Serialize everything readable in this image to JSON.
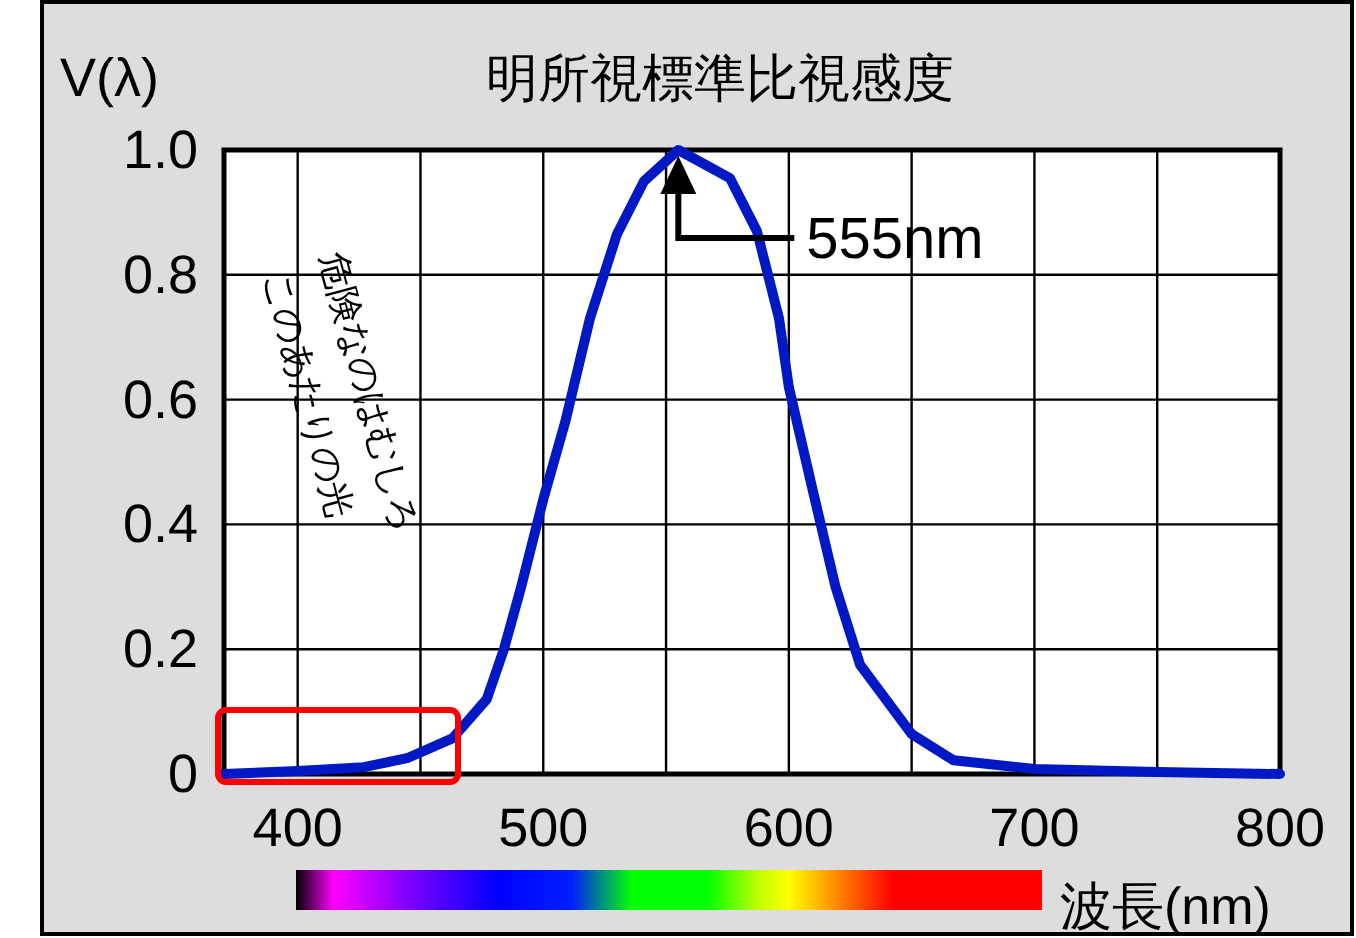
{
  "chart_data": {
    "type": "line",
    "title": "明所視標準比視感度",
    "ylabel": "V(λ)",
    "xlabel": "波長(nm)",
    "annotations": [
      {
        "text": "555nm",
        "x": 555,
        "y": 1.0
      },
      "危険なのはむしろ",
      "このあたりの光"
    ],
    "x": [
      370,
      400,
      427,
      445,
      463,
      477,
      484,
      491,
      500,
      509,
      519,
      530,
      541,
      555,
      576,
      587,
      596,
      600,
      610,
      619,
      629,
      650,
      667,
      700,
      750,
      800
    ],
    "series": [
      {
        "color": "#0019c4",
        "values": [
          0.0,
          0.005,
          0.011,
          0.026,
          0.057,
          0.12,
          0.2,
          0.3,
          0.44,
          0.565,
          0.73,
          0.865,
          0.95,
          1.0,
          0.955,
          0.87,
          0.73,
          0.62,
          0.45,
          0.3,
          0.175,
          0.064,
          0.022,
          0.008,
          0.003,
          0.0
        ]
      }
    ],
    "xlim": [
      370,
      800
    ],
    "xticks": [
      400,
      {
        "value": 450,
        "label": null
      },
      500,
      {
        "value": 550,
        "label": null
      },
      600,
      {
        "value": 650,
        "label": null
      },
      700,
      {
        "value": 750,
        "label": null
      },
      800
    ],
    "ylim": [
      0,
      1
    ],
    "yticks": [
      0,
      0.2,
      0.4,
      0.6,
      0.8,
      {
        "value": 1,
        "label": "1.0"
      }
    ],
    "grid": true
  }
}
